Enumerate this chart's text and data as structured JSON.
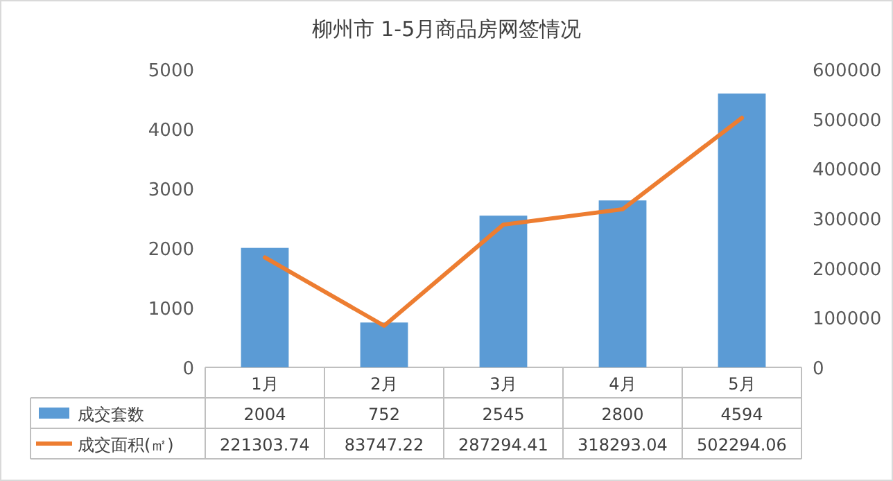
{
  "chart_data": {
    "type": "bar",
    "title": "柳州市 1-5月商品房网签情况",
    "categories": [
      "1月",
      "2月",
      "3月",
      "4月",
      "5月"
    ],
    "series": [
      {
        "name": "成交套数",
        "color": "#5b9bd5",
        "values": [
          2004,
          752,
          2545,
          2800,
          4594
        ]
      },
      {
        "name": "成交面积(㎡)",
        "type": "line",
        "axis": "y2",
        "color": "#ed7d31",
        "values": [
          221303.74,
          83747.22,
          287294.41,
          318293.04,
          502294.06
        ]
      }
    ],
    "ylim": [
      0,
      5000
    ],
    "yticks": [
      0,
      1000,
      2000,
      3000,
      4000,
      5000
    ],
    "y2lim": [
      0,
      600000
    ],
    "y2ticks": [
      0,
      100000,
      200000,
      300000,
      400000,
      500000,
      600000
    ],
    "data_labels": true,
    "legend": "bottom",
    "grid": false,
    "marker": "none",
    "line_style": "solid"
  }
}
